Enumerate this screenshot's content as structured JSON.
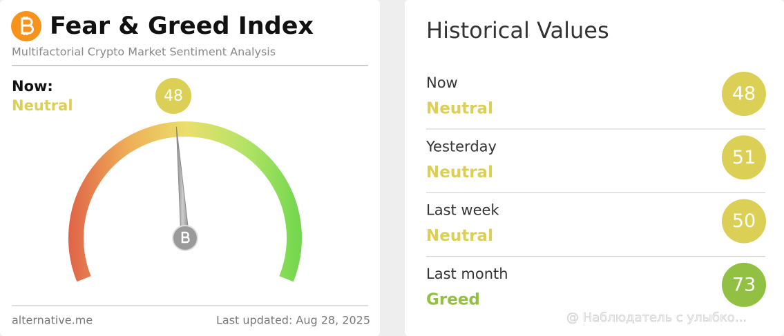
{
  "header": {
    "title": "Fear & Greed Index",
    "subtitle": "Multifactorial Crypto Market Sentiment Analysis"
  },
  "now": {
    "label": "Now:",
    "classification": "Neutral",
    "value": 48,
    "color": "#dccf55"
  },
  "footer": {
    "source": "alternative.me",
    "updated": "Last updated: Aug 28, 2025"
  },
  "history": {
    "title": "Historical Values",
    "rows": [
      {
        "label": "Now",
        "classification": "Neutral",
        "value": 48,
        "color": "#dccf55"
      },
      {
        "label": "Yesterday",
        "classification": "Neutral",
        "value": 51,
        "color": "#dccf55"
      },
      {
        "label": "Last week",
        "classification": "Neutral",
        "value": 50,
        "color": "#dccf55"
      },
      {
        "label": "Last month",
        "classification": "Greed",
        "value": 73,
        "color": "#92c042"
      }
    ]
  },
  "watermark": "@ Наблюдатель с улыбко..."
}
